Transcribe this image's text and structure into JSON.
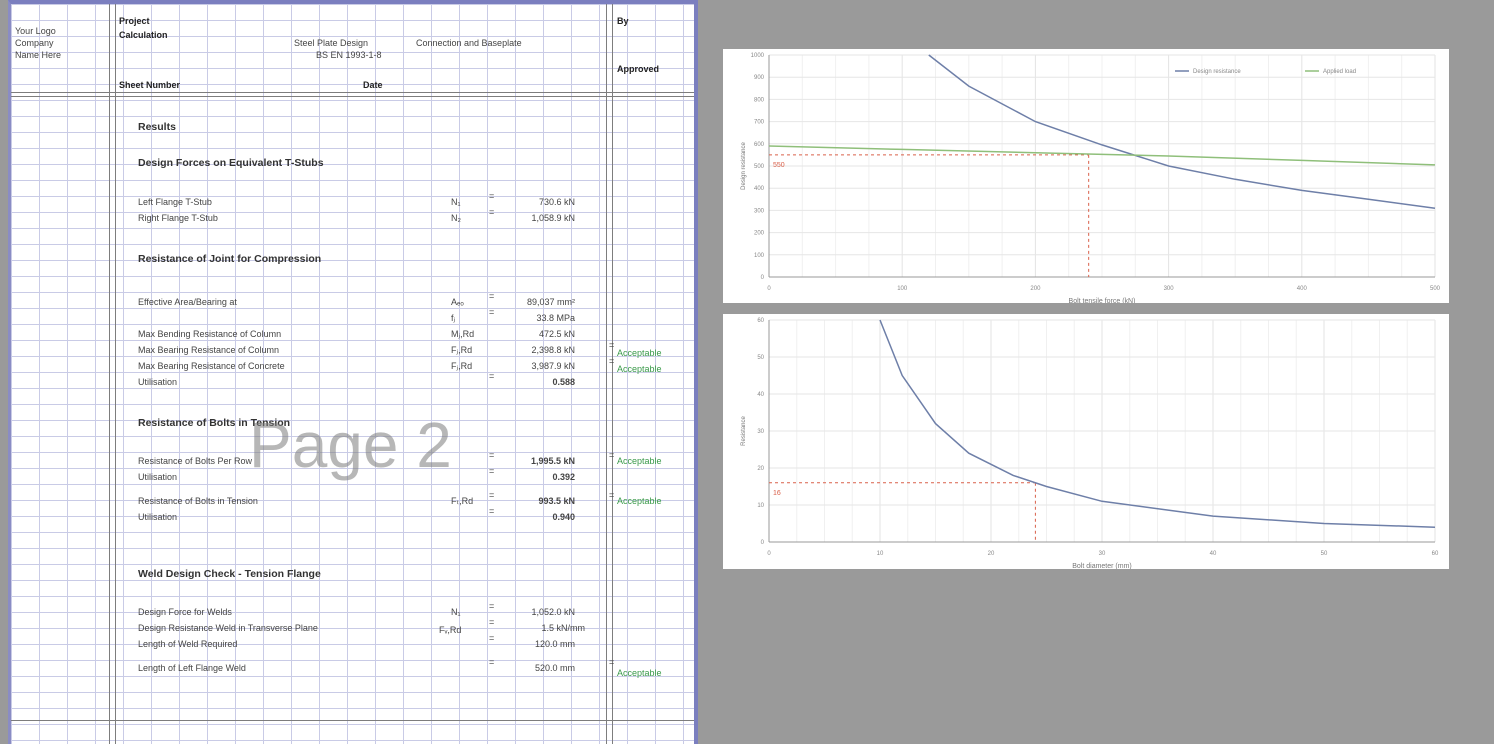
{
  "sheet": {
    "header": {
      "logo_lines": [
        "Your Logo",
        "Company",
        "Name Here"
      ],
      "project_label": "Project",
      "calculation_label": "Calculation",
      "calc_title": "Steel Plate Design",
      "calc_ref": "BS EN 1993-1-8",
      "calc_desc": "Connection and Baseplate",
      "sheet_label": "By",
      "approved_label": "Approved",
      "sheet_number_label": "Sheet Number",
      "date_label": "Date"
    },
    "sections": {
      "results": "Results",
      "design_forces": "Design Forces on Equivalent T-Stubs",
      "resistance_compression": "Resistance of Joint for Compression",
      "resistance_bolts": "Resistance of Bolts in Tension",
      "weld_design": "Weld Design Check - Tension Flange"
    },
    "rows_forces": [
      {
        "label": "Left Flange T-Stub",
        "symbol": "N₁",
        "value": "730.6 kN"
      },
      {
        "label": "Right Flange T-Stub",
        "symbol": "N₂",
        "value": "1,058.9 kN"
      }
    ],
    "rows_compression": [
      {
        "label": "Effective Area/Bearing at",
        "symbol": "Aₑₒ",
        "value": "89,037 mm²",
        "status": ""
      },
      {
        "label": "",
        "symbol": "fⱼ",
        "value": "33.8 MPa",
        "status": ""
      },
      {
        "label": "Max Bending Resistance of Column",
        "symbol": "Mⱼ,Rd",
        "value": "472.5 kN",
        "status": ""
      },
      {
        "label": "Max Bearing Resistance of Column",
        "symbol": "Fⱼ,Rd",
        "value": "2,398.8 kN",
        "status": "Acceptable"
      },
      {
        "label": "Max Bearing Resistance of Concrete",
        "symbol": "Fⱼ,Rd",
        "value": "3,987.9 kN",
        "status": "Acceptable"
      },
      {
        "label": "Utilisation",
        "symbol": "",
        "value": "0.588",
        "status": ""
      }
    ],
    "rows_bolts": [
      {
        "label": "Resistance of Bolts Per Row",
        "symbol": "",
        "value": "1,995.5 kN",
        "status": "Acceptable"
      },
      {
        "label": "Utilisation",
        "symbol": "",
        "value": "0.392",
        "status": ""
      },
      {
        "label": "Resistance of Bolts in Tension",
        "symbol": "Fₜ,Rd",
        "value": "993.5 kN",
        "status": "Acceptable"
      },
      {
        "label": "Utilisation",
        "symbol": "",
        "value": "0.940",
        "status": ""
      }
    ],
    "rows_weld": [
      {
        "label": "Design Force for Welds",
        "symbol": "N₁",
        "value": "1,052.0 kN",
        "status": ""
      },
      {
        "label": "Design Resistance Weld in Transverse Plane",
        "symbol": "Fᵥ,Rd",
        "value": "1.5 kN/mm",
        "status": ""
      },
      {
        "label": "Length of Weld Required",
        "symbol": "",
        "value": "120.0 mm",
        "status": ""
      },
      {
        "label": "Length of Left Flange Weld",
        "symbol": "",
        "value": "520.0 mm",
        "status": "Acceptable"
      }
    ],
    "watermark": "Page 2"
  },
  "chart_data": [
    {
      "type": "line",
      "title": "",
      "xlabel": "Bolt tensile force (kN)",
      "ylabel": "Design resistance",
      "legend_position": "top-right",
      "legend": [
        "Design resistance",
        "Applied load"
      ],
      "xlim": [
        0,
        500
      ],
      "ylim": [
        0,
        1000
      ],
      "x_ticks": [
        "0",
        "100",
        "200",
        "300",
        "400",
        "500"
      ],
      "y_ticks": [
        "0",
        "100",
        "200",
        "300",
        "400",
        "500",
        "600",
        "700",
        "800",
        "900",
        "1000"
      ],
      "series": [
        {
          "name": "Design resistance",
          "color": "#6e7fa8",
          "x": [
            120,
            150,
            200,
            250,
            300,
            350,
            400,
            450,
            500
          ],
          "y": [
            1000,
            860,
            700,
            595,
            500,
            440,
            390,
            350,
            310
          ]
        },
        {
          "name": "Applied load",
          "color": "#8fbf7a",
          "x": [
            0,
            100,
            200,
            300,
            400,
            500
          ],
          "y": [
            590,
            575,
            560,
            545,
            525,
            505
          ]
        }
      ],
      "marker": {
        "x": 240,
        "y": 550,
        "label": "550",
        "color": "#d9604a"
      }
    },
    {
      "type": "line",
      "title": "",
      "xlabel": "Bolt diameter (mm)",
      "ylabel": "Resistance",
      "xlim": [
        0,
        60
      ],
      "ylim": [
        0,
        60
      ],
      "x_ticks": [
        "0",
        "10",
        "20",
        "30",
        "40",
        "50",
        "60"
      ],
      "y_ticks": [
        "0",
        "10",
        "20",
        "30",
        "40",
        "50",
        "60"
      ],
      "series": [
        {
          "name": "",
          "color": "#6e7fa8",
          "x": [
            10,
            12,
            15,
            18,
            22,
            25,
            30,
            40,
            50,
            60
          ],
          "y": [
            60,
            45,
            32,
            24,
            18,
            15,
            11,
            7,
            5,
            4
          ]
        }
      ],
      "marker": {
        "x": 24,
        "y": 16,
        "label": "16",
        "color": "#d9604a"
      }
    }
  ]
}
